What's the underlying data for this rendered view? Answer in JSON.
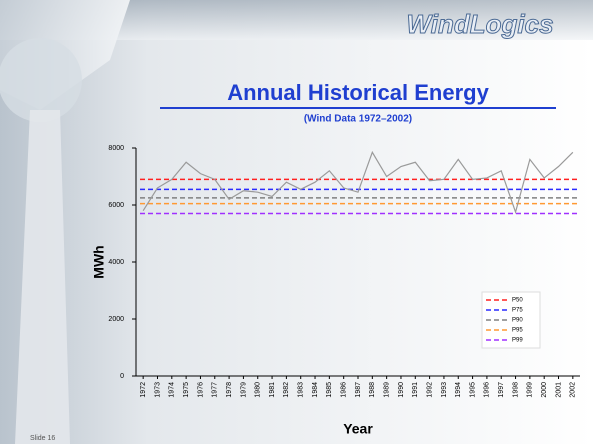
{
  "logo": "WindLogics",
  "footer": "Slide 16",
  "chart_data": {
    "type": "line",
    "title": "Annual Historical Energy",
    "subtitle": "(Wind Data 1972–2002)",
    "x_label": "Year",
    "y_label": "MWh",
    "categories": [
      "1972",
      "1973",
      "1974",
      "1975",
      "1976",
      "1977",
      "1978",
      "1979",
      "1980",
      "1981",
      "1982",
      "1983",
      "1984",
      "1985",
      "1986",
      "1987",
      "1988",
      "1989",
      "1990",
      "1991",
      "1992",
      "1993",
      "1994",
      "1995",
      "1996",
      "1997",
      "1998",
      "1999",
      "2000",
      "2001",
      "2002"
    ],
    "series": [
      {
        "color": "#9a9a9a",
        "values": [
          5800,
          6600,
          6900,
          7500,
          7100,
          6900,
          6200,
          6500,
          6450,
          6300,
          6800,
          6550,
          6800,
          7200,
          6600,
          6450,
          7850,
          7000,
          7350,
          7500,
          6850,
          6900,
          7600,
          6900,
          6950,
          7200,
          5750,
          7600,
          6950,
          7350,
          7850
        ]
      }
    ],
    "reference_lines": [
      {
        "name": "P50",
        "color": "#ff2020",
        "value": 6900
      },
      {
        "name": "P75",
        "color": "#2a2aff",
        "value": 6550
      },
      {
        "name": "P90",
        "color": "#808080",
        "value": 6250
      },
      {
        "name": "P95",
        "color": "#ff9933",
        "value": 6050
      },
      {
        "name": "P99",
        "color": "#a030ff",
        "value": 5700
      }
    ],
    "ylim": [
      0,
      8000
    ],
    "yticks": [
      0,
      2000,
      4000,
      6000,
      8000
    ],
    "legend": "lower-right"
  }
}
